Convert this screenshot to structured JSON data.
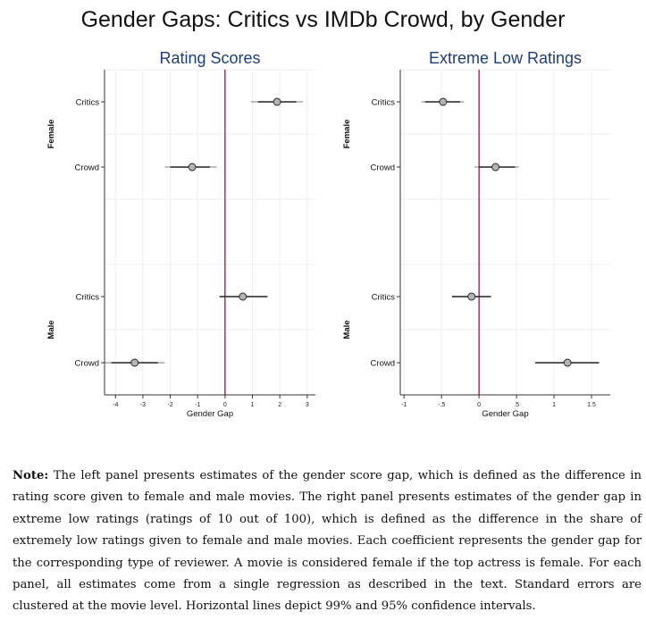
{
  "title": "Gender Gaps: Critics vs IMDb Crowd, by Gender",
  "colors": {
    "zero_line": "#8b0a2e",
    "panel_title": "#1f3d78",
    "marker_fill": "#b3b3b3",
    "grid": "#eeeeee"
  },
  "chart_data": [
    {
      "type": "scatter",
      "title": "Rating Scores",
      "xlabel": "Gender Gap",
      "xlim": [
        -4.4,
        3.3
      ],
      "xticks": [
        -4,
        -3,
        -2,
        -1,
        0,
        1,
        2,
        3
      ],
      "xtick_labels": [
        "-4",
        "-3",
        "-2",
        "-1",
        "0",
        "1",
        "2",
        "3"
      ],
      "groups": [
        "Female",
        "Male"
      ],
      "rows": [
        {
          "group": "Female",
          "label": "Critics",
          "estimate": 1.9,
          "ci95": [
            1.2,
            2.6
          ],
          "ci99": [
            0.95,
            2.85
          ]
        },
        {
          "group": "Female",
          "label": "Crowd",
          "estimate": -1.2,
          "ci95": [
            -2.0,
            -0.55
          ],
          "ci99": [
            -2.2,
            -0.3
          ]
        },
        {
          "group": "Male",
          "label": "Critics",
          "estimate": 0.65,
          "ci95": [
            -0.2,
            1.55
          ],
          "ci99": [
            -0.2,
            1.55
          ]
        },
        {
          "group": "Male",
          "label": "Crowd",
          "estimate": -3.3,
          "ci95": [
            -4.15,
            -2.45
          ],
          "ci99": [
            -4.4,
            -2.2
          ]
        }
      ]
    },
    {
      "type": "scatter",
      "title": "Extreme Low Ratings",
      "xlabel": "Gender Gap",
      "xlim": [
        -1.05,
        1.75
      ],
      "xticks": [
        -1,
        -0.5,
        0,
        0.5,
        1,
        1.5
      ],
      "xtick_labels": [
        "-1",
        "-.5",
        "0",
        ".5",
        "1",
        "1.5"
      ],
      "groups": [
        "Female",
        "Male"
      ],
      "rows": [
        {
          "group": "Female",
          "label": "Critics",
          "estimate": -0.48,
          "ci95": [
            -0.72,
            -0.25
          ],
          "ci99": [
            -0.77,
            -0.2
          ]
        },
        {
          "group": "Female",
          "label": "Crowd",
          "estimate": 0.22,
          "ci95": [
            0.0,
            0.48
          ],
          "ci99": [
            -0.06,
            0.53
          ]
        },
        {
          "group": "Male",
          "label": "Critics",
          "estimate": -0.1,
          "ci95": [
            -0.36,
            0.16
          ],
          "ci99": [
            -0.36,
            0.16
          ]
        },
        {
          "group": "Male",
          "label": "Crowd",
          "estimate": 1.18,
          "ci95": [
            0.75,
            1.6
          ],
          "ci99": [
            0.75,
            1.6
          ]
        }
      ]
    }
  ],
  "note": {
    "lead": "Note:",
    "text": "The left panel presents estimates of the gender score gap, which is defined as the difference in rating score given to female and male movies. The right panel presents estimates of the gender gap in extreme low ratings (ratings of 10 out of 100), which is defined as the difference in the share of extremely low ratings given to female and male movies. Each coefficient represents the gender gap for the corresponding type of reviewer. A movie is considered female if the top actress is female. For each panel, all estimates come from a single regression as described in the text. Standard errors are clustered at the movie level. Horizontal lines depict 99% and 95% confidence intervals."
  }
}
